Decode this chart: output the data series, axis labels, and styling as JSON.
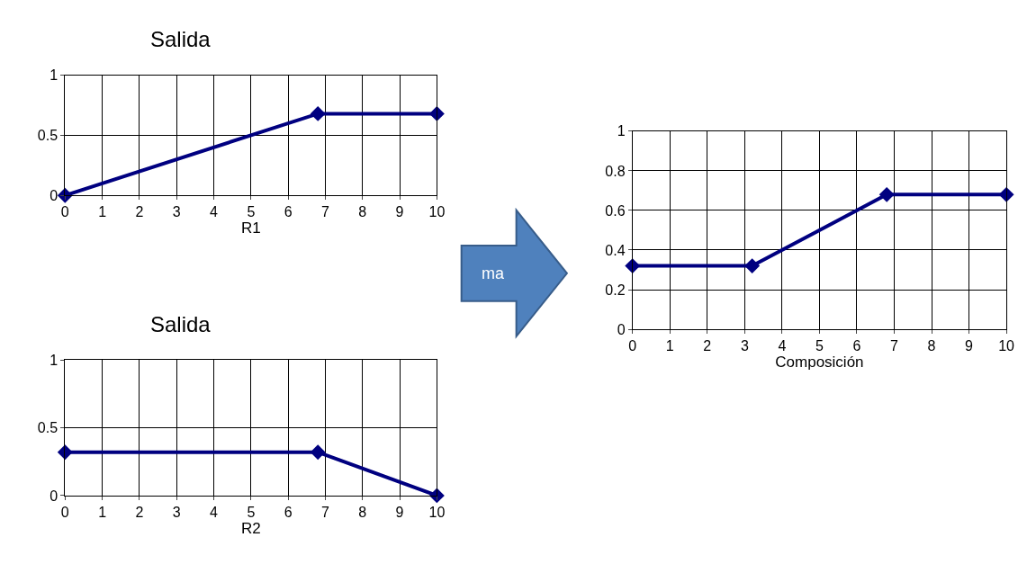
{
  "chart_data": [
    {
      "type": "line",
      "title": "Salida",
      "xlabel": "R1",
      "x": [
        0,
        6.8,
        10
      ],
      "values": [
        0,
        0.68,
        0.68
      ],
      "color": "#000080",
      "xlim": [
        0,
        10
      ],
      "xticks": [
        0,
        1,
        2,
        3,
        4,
        5,
        6,
        7,
        8,
        9,
        10
      ],
      "ylim": [
        0,
        1
      ],
      "yticks": [
        0,
        0.5,
        1
      ],
      "grid": true,
      "marker": "diamond"
    },
    {
      "type": "line",
      "title": "Salida",
      "xlabel": "R2",
      "x": [
        0,
        6.8,
        10
      ],
      "values": [
        0.32,
        0.32,
        0
      ],
      "color": "#000080",
      "xlim": [
        0,
        10
      ],
      "xticks": [
        0,
        1,
        2,
        3,
        4,
        5,
        6,
        7,
        8,
        9,
        10
      ],
      "ylim": [
        0,
        1
      ],
      "yticks": [
        0,
        0.5,
        1
      ],
      "grid": true,
      "marker": "diamond"
    },
    {
      "type": "other",
      "annotations": [
        "ma"
      ]
    },
    {
      "type": "line",
      "xlabel": "Composición",
      "x": [
        0,
        3.2,
        6.8,
        10
      ],
      "values": [
        0.32,
        0.32,
        0.68,
        0.68
      ],
      "color": "#000080",
      "xlim": [
        0,
        10
      ],
      "xticks": [
        0,
        1,
        2,
        3,
        4,
        5,
        6,
        7,
        8,
        9,
        10
      ],
      "ylim": [
        0,
        1
      ],
      "yticks": [
        0,
        0.2,
        0.4,
        0.6,
        0.8,
        1
      ],
      "grid": true,
      "marker": "diamond"
    }
  ]
}
